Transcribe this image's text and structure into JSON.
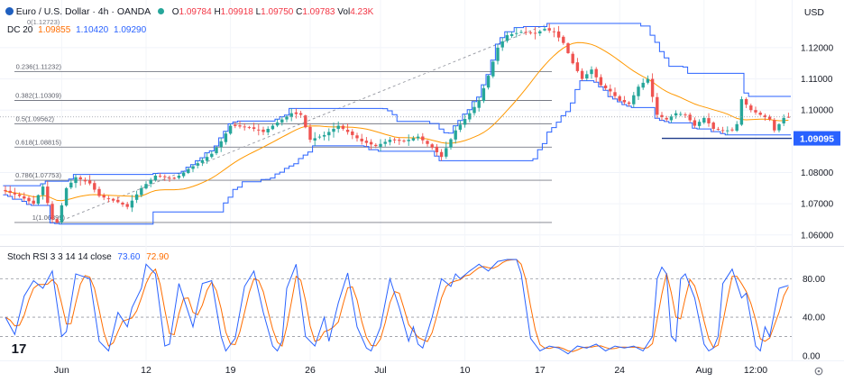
{
  "header": {
    "symbol_title": "Euro / U.S. Dollar · 4h · OANDA",
    "open_label": "O",
    "open": "1.09784",
    "high_label": "H",
    "high": "1.09918",
    "low_label": "L",
    "low": "1.09750",
    "close_label": "C",
    "close": "1.09783",
    "volume_label": "Vol",
    "volume": "4.23K",
    "currency": "USD",
    "fib_origin_label": "0(1.12723)"
  },
  "indicators": {
    "dc_label": "DC 20",
    "dc_values": [
      "1.09855",
      "1.10420",
      "1.09290"
    ],
    "stoch_label": "Stoch RSI 3 3 14 14 close",
    "stoch_k_value": "73.60",
    "stoch_d_value": "72.90"
  },
  "colors": {
    "up": "#26a69a",
    "down": "#ef5350",
    "donchian": "#2962ff",
    "sma": "#ff9800",
    "fib": "#787b86",
    "price_badge": "#2962ff",
    "stoch_k": "#2962ff",
    "stoch_d": "#ff6d00",
    "stoch_value": "#2962ff"
  },
  "current_price_badge": "1.09095",
  "logo_text": "17",
  "chart_data": {
    "type": "candlestick",
    "title": "Euro / U.S. Dollar · 4h · OANDA",
    "ylim": [
      1.0585,
      1.1295
    ],
    "y_ticks": [
      "1.12000",
      "1.11000",
      "1.10000",
      "1.08000",
      "1.07000",
      "1.06000"
    ],
    "y_tick_values": [
      1.12,
      1.11,
      1.1,
      1.08,
      1.07,
      1.06
    ],
    "x_tick_labels": [
      "Jun",
      "12",
      "19",
      "26",
      "Jul",
      "10",
      "17",
      "24",
      "Aug",
      "12:00"
    ],
    "x_tick_bar_index": [
      12,
      30,
      48,
      65,
      80,
      98,
      114,
      131,
      149,
      160
    ],
    "bar_count": 168,
    "price_anchors": [
      [
        0,
        1.074
      ],
      [
        3,
        1.0725
      ],
      [
        6,
        1.07
      ],
      [
        8,
        1.0755
      ],
      [
        10,
        1.065
      ],
      [
        11,
        1.064
      ],
      [
        13,
        1.075
      ],
      [
        15,
        1.0785
      ],
      [
        18,
        1.0765
      ],
      [
        20,
        1.0725
      ],
      [
        24,
        1.0705
      ],
      [
        26,
        1.069
      ],
      [
        29,
        1.075
      ],
      [
        32,
        1.079
      ],
      [
        36,
        1.078
      ],
      [
        40,
        1.082
      ],
      [
        44,
        1.086
      ],
      [
        46,
        1.09
      ],
      [
        48,
        1.095
      ],
      [
        52,
        1.0945
      ],
      [
        55,
        1.093
      ],
      [
        58,
        1.096
      ],
      [
        61,
        1.099
      ],
      [
        63,
        1.0985
      ],
      [
        65,
        1.0905
      ],
      [
        68,
        1.092
      ],
      [
        71,
        1.095
      ],
      [
        73,
        1.093
      ],
      [
        76,
        1.09
      ],
      [
        79,
        1.0885
      ],
      [
        82,
        1.0905
      ],
      [
        85,
        1.09
      ],
      [
        88,
        1.0915
      ],
      [
        91,
        1.088
      ],
      [
        93,
        1.085
      ],
      [
        96,
        1.0935
      ],
      [
        99,
        1.099
      ],
      [
        101,
        1.103
      ],
      [
        103,
        1.111
      ],
      [
        105,
        1.12
      ],
      [
        107,
        1.124
      ],
      [
        110,
        1.125
      ],
      [
        113,
        1.1245
      ],
      [
        115,
        1.126
      ],
      [
        117,
        1.125
      ],
      [
        119,
        1.1215
      ],
      [
        121,
        1.115
      ],
      [
        123,
        1.11
      ],
      [
        125,
        1.113
      ],
      [
        127,
        1.108
      ],
      [
        129,
        1.106
      ],
      [
        131,
        1.103
      ],
      [
        133,
        1.102
      ],
      [
        135,
        1.1075
      ],
      [
        137,
        1.11
      ],
      [
        139,
        1.0985
      ],
      [
        141,
        1.097
      ],
      [
        143,
        1.099
      ],
      [
        145,
        1.0985
      ],
      [
        147,
        1.095
      ],
      [
        149,
        1.0975
      ],
      [
        151,
        1.094
      ],
      [
        153,
        1.0935
      ],
      [
        155,
        1.0935
      ],
      [
        156,
        1.0955
      ],
      [
        157,
        1.1035
      ],
      [
        159,
        1.1
      ],
      [
        161,
        1.0985
      ],
      [
        163,
        1.097
      ],
      [
        164,
        1.0935
      ],
      [
        166,
        1.0975
      ],
      [
        167,
        1.0978
      ]
    ],
    "donchian": {
      "period": 20
    },
    "sma_period": 20,
    "fibonacci": [
      {
        "label": "0(1.12723)",
        "level": 1.12723
      },
      {
        "label": "0.236(1.11232)",
        "level": 1.11232
      },
      {
        "label": "0.382(1.10309)",
        "level": 1.10309
      },
      {
        "label": "0.5(1.09562)",
        "level": 1.09562
      },
      {
        "label": "0.618(1.08815)",
        "level": 1.08815
      },
      {
        "label": "0.786(1.07753)",
        "level": 1.07753
      },
      {
        "label": "1(1.06399)",
        "level": 1.06399
      }
    ],
    "support_level": 1.09095,
    "last_price": 1.09783,
    "stoch_rsi": {
      "ylim": [
        -3,
        100
      ],
      "levels": [
        80,
        40,
        20
      ],
      "y_ticks": [
        "80.00",
        "40.00",
        "0.00"
      ],
      "y_tick_values": [
        80,
        40,
        0
      ],
      "k_anchors": [
        [
          0,
          40
        ],
        [
          2,
          22
        ],
        [
          4,
          62
        ],
        [
          6,
          78
        ],
        [
          8,
          70
        ],
        [
          10,
          88
        ],
        [
          12,
          20
        ],
        [
          13,
          25
        ],
        [
          15,
          85
        ],
        [
          18,
          80
        ],
        [
          20,
          15
        ],
        [
          22,
          5
        ],
        [
          24,
          45
        ],
        [
          26,
          30
        ],
        [
          27,
          50
        ],
        [
          29,
          70
        ],
        [
          30,
          95
        ],
        [
          32,
          85
        ],
        [
          34,
          10
        ],
        [
          35,
          12
        ],
        [
          37,
          75
        ],
        [
          38,
          60
        ],
        [
          40,
          30
        ],
        [
          42,
          75
        ],
        [
          44,
          78
        ],
        [
          46,
          20
        ],
        [
          47,
          5
        ],
        [
          49,
          18
        ],
        [
          51,
          72
        ],
        [
          53,
          88
        ],
        [
          55,
          45
        ],
        [
          57,
          10
        ],
        [
          58,
          5
        ],
        [
          59,
          15
        ],
        [
          60,
          70
        ],
        [
          62,
          95
        ],
        [
          64,
          20
        ],
        [
          66,
          10
        ],
        [
          68,
          40
        ],
        [
          69,
          15
        ],
        [
          71,
          55
        ],
        [
          73,
          86
        ],
        [
          75,
          30
        ],
        [
          77,
          8
        ],
        [
          78,
          5
        ],
        [
          80,
          30
        ],
        [
          82,
          80
        ],
        [
          84,
          50
        ],
        [
          86,
          15
        ],
        [
          87,
          30
        ],
        [
          88,
          12
        ],
        [
          89,
          8
        ],
        [
          91,
          40
        ],
        [
          93,
          80
        ],
        [
          95,
          72
        ],
        [
          96,
          85
        ],
        [
          97,
          80
        ],
        [
          99,
          88
        ],
        [
          101,
          95
        ],
        [
          103,
          88
        ],
        [
          105,
          98
        ],
        [
          107,
          100
        ],
        [
          109,
          100
        ],
        [
          110,
          85
        ],
        [
          112,
          18
        ],
        [
          114,
          5
        ],
        [
          116,
          10
        ],
        [
          118,
          8
        ],
        [
          120,
          2
        ],
        [
          122,
          10
        ],
        [
          124,
          8
        ],
        [
          126,
          12
        ],
        [
          128,
          5
        ],
        [
          130,
          10
        ],
        [
          132,
          8
        ],
        [
          134,
          10
        ],
        [
          136,
          5
        ],
        [
          138,
          20
        ],
        [
          139,
          80
        ],
        [
          140,
          92
        ],
        [
          141,
          85
        ],
        [
          142,
          20
        ],
        [
          143,
          15
        ],
        [
          144,
          80
        ],
        [
          145,
          85
        ],
        [
          147,
          60
        ],
        [
          149,
          12
        ],
        [
          150,
          5
        ],
        [
          151,
          8
        ],
        [
          152,
          20
        ],
        [
          153,
          75
        ],
        [
          155,
          90
        ],
        [
          157,
          60
        ],
        [
          158,
          65
        ],
        [
          160,
          10
        ],
        [
          161,
          5
        ],
        [
          162,
          30
        ],
        [
          163,
          20
        ],
        [
          165,
          70
        ],
        [
          167,
          73
        ]
      ]
    }
  }
}
